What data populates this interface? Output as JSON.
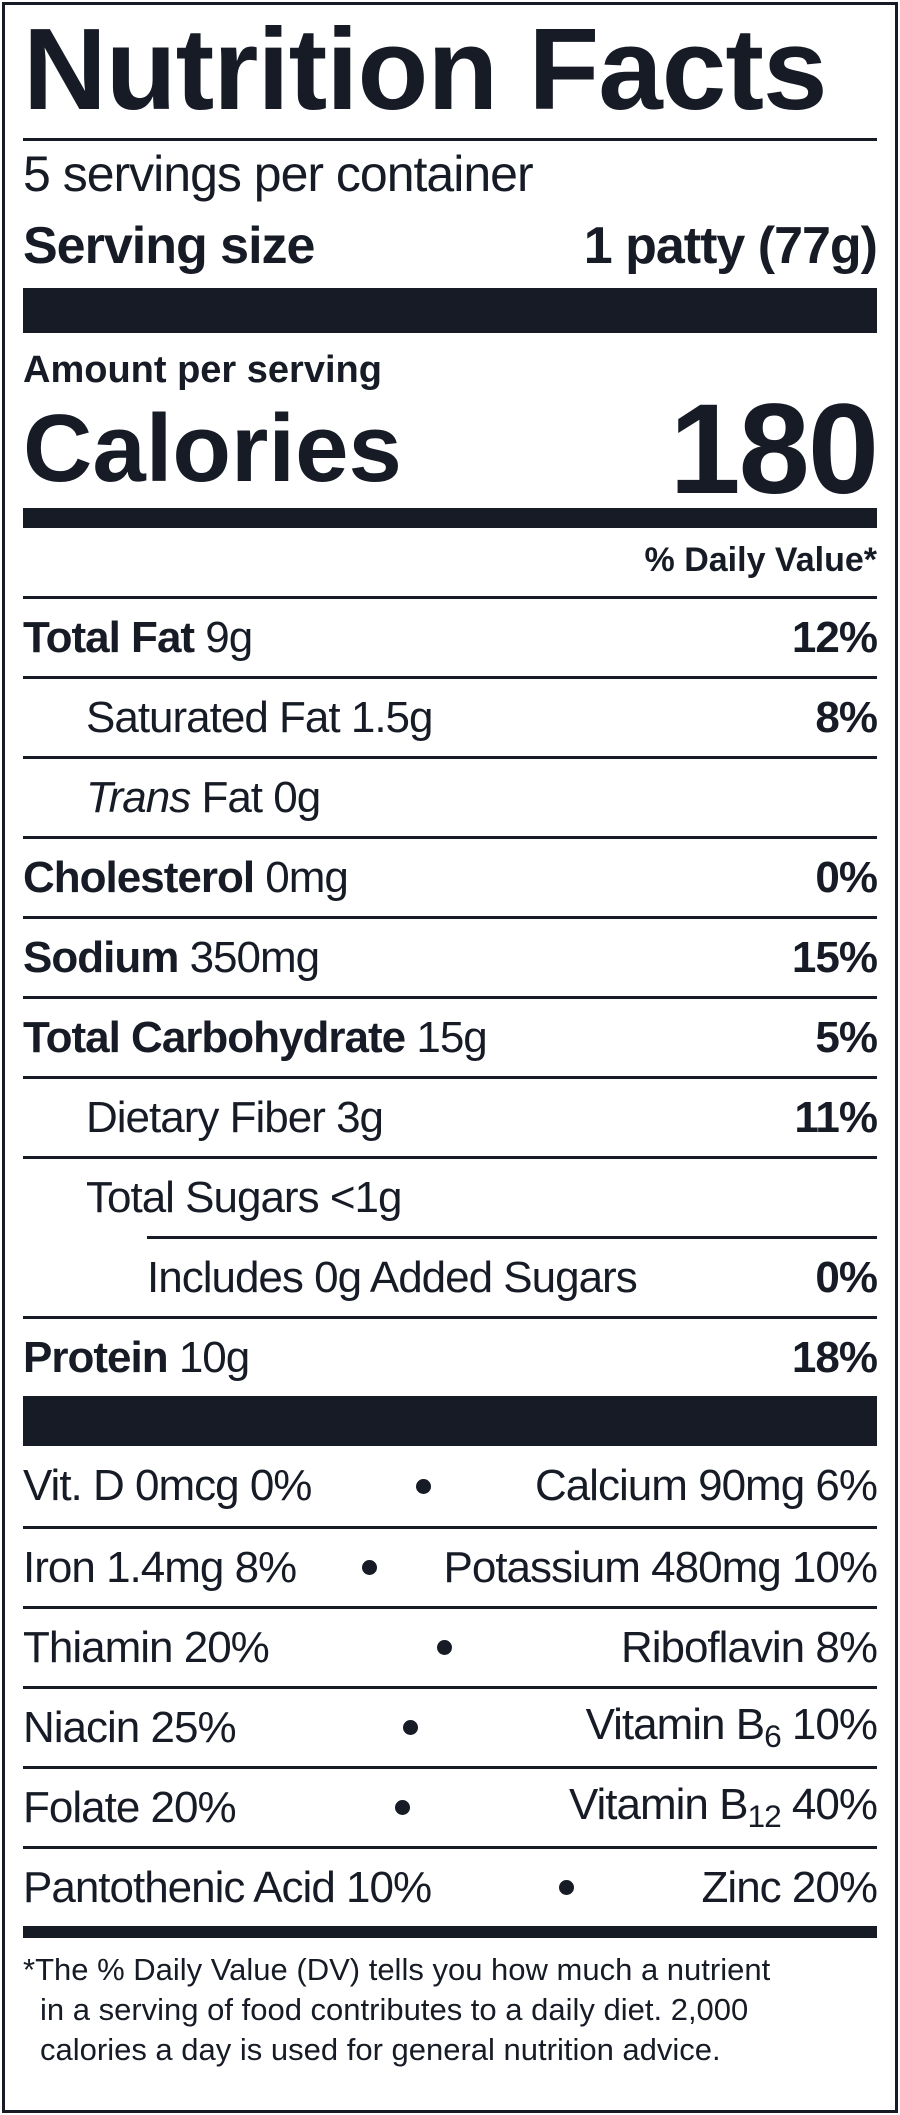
{
  "title": "Nutrition Facts",
  "servings": "5 servings per container",
  "serving_size": {
    "label": "Serving size",
    "value": "1 patty (77g)"
  },
  "amount_per_serving": "Amount per serving",
  "calories": {
    "label": "Calories",
    "value": "180"
  },
  "daily_value_header": "% Daily Value*",
  "nutrients": [
    {
      "name": "Total Fat",
      "amount": "9g",
      "dv": "12%",
      "sub": [
        {
          "name": "Saturated Fat",
          "amount": "1.5g",
          "dv": "8%"
        },
        {
          "name_italic": "Trans",
          "name": "Fat",
          "amount": "0g"
        }
      ]
    },
    {
      "name": "Cholesterol",
      "amount": "0mg",
      "dv": "0%"
    },
    {
      "name": "Sodium",
      "amount": "350mg",
      "dv": "15%"
    },
    {
      "name": "Total Carbohydrate",
      "amount": "15g",
      "dv": "5%",
      "sub": [
        {
          "name": "Dietary Fiber",
          "amount": "3g",
          "dv": "11%"
        },
        {
          "name": "Total Sugars",
          "amount": "<1g",
          "sub": [
            {
              "name": "Includes 0g Added Sugars",
              "dv": "0%"
            }
          ]
        }
      ]
    },
    {
      "name": "Protein",
      "amount": "10g",
      "dv": "18%"
    }
  ],
  "vitamins": [
    [
      {
        "name": "Vit. D",
        "amount": "0mcg 0%"
      },
      {
        "name": "Calcium",
        "amount": "90mg 6%"
      }
    ],
    [
      {
        "name": "Iron",
        "amount": "1.4mg 8%"
      },
      {
        "name": "Potassium",
        "amount": "480mg 10%"
      }
    ],
    [
      {
        "name": "Thiamin",
        "amount": "20%"
      },
      {
        "name": "Riboflavin",
        "amount": "8%"
      }
    ],
    [
      {
        "name": "Niacin",
        "amount": "25%"
      },
      {
        "name": "Vitamin B",
        "sub": "6",
        "amount": "10%"
      }
    ],
    [
      {
        "name": "Folate",
        "amount": "20%"
      },
      {
        "name": "Vitamin B",
        "sub": "12",
        "amount": "40%"
      }
    ],
    [
      {
        "name": "Pantothenic Acid",
        "amount": "10%"
      },
      {
        "name": "Zinc",
        "amount": "20%"
      }
    ]
  ],
  "footnote": [
    "*The % Daily Value (DV) tells you how much a nutrient",
    "in a serving of food contributes to a daily diet. 2,000",
    "calories a day is used for general nutrition advice."
  ]
}
